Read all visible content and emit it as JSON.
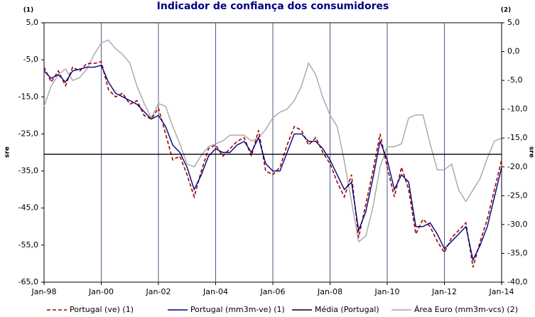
{
  "chart_data": {
    "type": "line",
    "title": "Indicador de confiança dos consumidores",
    "y_axis_note": "(1)",
    "y2_axis_note": "(2)",
    "ylabel": "sre",
    "y2label": "sre",
    "x": [
      "1998-01",
      "1998-04",
      "1998-07",
      "1998-10",
      "1999-01",
      "1999-04",
      "1999-07",
      "1999-10",
      "2000-01",
      "2000-04",
      "2000-07",
      "2000-10",
      "2001-01",
      "2001-04",
      "2001-07",
      "2001-10",
      "2002-01",
      "2002-04",
      "2002-07",
      "2002-10",
      "2003-01",
      "2003-04",
      "2003-07",
      "2003-10",
      "2004-01",
      "2004-04",
      "2004-07",
      "2004-10",
      "2005-01",
      "2005-04",
      "2005-07",
      "2005-10",
      "2006-01",
      "2006-04",
      "2006-07",
      "2006-10",
      "2007-01",
      "2007-04",
      "2007-07",
      "2007-10",
      "2008-01",
      "2008-04",
      "2008-07",
      "2008-10",
      "2009-01",
      "2009-04",
      "2009-07",
      "2009-10",
      "2010-01",
      "2010-04",
      "2010-07",
      "2010-10",
      "2011-01",
      "2011-04",
      "2011-07",
      "2011-10",
      "2012-01",
      "2012-04",
      "2012-07",
      "2012-10",
      "2013-01",
      "2013-04",
      "2013-07",
      "2013-10",
      "2014-01"
    ],
    "xlim": [
      "1998-01",
      "2014-01"
    ],
    "xticks": [
      {
        "value": "1998-01",
        "label": "Jan-98"
      },
      {
        "value": "2000-01",
        "label": "Jan-00"
      },
      {
        "value": "2002-01",
        "label": "Jan-02"
      },
      {
        "value": "2004-01",
        "label": "Jan-04"
      },
      {
        "value": "2006-01",
        "label": "Jan-06"
      },
      {
        "value": "2008-01",
        "label": "Jan-08"
      },
      {
        "value": "2010-01",
        "label": "Jan-10"
      },
      {
        "value": "2012-01",
        "label": "Jan-12"
      },
      {
        "value": "2014-01",
        "label": "Jan-14"
      }
    ],
    "ylim": [
      -65,
      5
    ],
    "yticks": [
      {
        "value": 5,
        "label": "5,0"
      },
      {
        "value": -5,
        "label": "-5,0"
      },
      {
        "value": -15,
        "label": "-15,0"
      },
      {
        "value": -25,
        "label": "-25,0"
      },
      {
        "value": -35,
        "label": "-35,0"
      },
      {
        "value": -45,
        "label": "-45,0"
      },
      {
        "value": -55,
        "label": "-55,0"
      },
      {
        "value": -65,
        "label": "-65,0"
      }
    ],
    "y2lim": [
      -40,
      5
    ],
    "y2ticks": [
      {
        "value": 5,
        "label": "5,0"
      },
      {
        "value": 0,
        "label": "0,0"
      },
      {
        "value": -5,
        "label": "-5,0"
      },
      {
        "value": -10,
        "label": "-10,0"
      },
      {
        "value": -15,
        "label": "-15,0"
      },
      {
        "value": -20,
        "label": "-20,0"
      },
      {
        "value": -25,
        "label": "-25,0"
      },
      {
        "value": -30,
        "label": "-30,0"
      },
      {
        "value": -35,
        "label": "-35,0"
      },
      {
        "value": -40,
        "label": "-40,0"
      }
    ],
    "grid": true,
    "legend": "bottom",
    "series": [
      {
        "name": "Portugal (ve) (1)",
        "color": "#a00000",
        "style": "dashed",
        "values": [
          -7,
          -11,
          -8,
          -12,
          -7,
          -8,
          -6,
          -6,
          -5.5,
          -13,
          -15,
          -14,
          -17,
          -16,
          -20,
          -21,
          -18,
          -25,
          -32,
          -31,
          -36,
          -42,
          -35,
          -29,
          -28,
          -31,
          -29,
          -27,
          -26,
          -31,
          -24,
          -35,
          -36,
          -34,
          -28,
          -23,
          -24,
          -28,
          -26,
          -30,
          -33,
          -38,
          -42,
          -36,
          -53,
          -44,
          -35,
          -25,
          -34,
          -42,
          -34,
          -40,
          -52,
          -48,
          -50,
          -54,
          -57,
          -53,
          -51,
          -49,
          -61,
          -54,
          -48,
          -40,
          -32
        ]
      },
      {
        "name": "Portugal (mm3m-ve) (1)",
        "color": "#000080",
        "style": "solid",
        "values": [
          -8,
          -10,
          -9,
          -11,
          -8,
          -7.5,
          -7,
          -7,
          -6.5,
          -11,
          -14,
          -15,
          -16,
          -17,
          -19,
          -21,
          -20,
          -23,
          -28,
          -30,
          -34,
          -40,
          -36,
          -31,
          -29,
          -30,
          -30,
          -28,
          -27,
          -30,
          -26,
          -33,
          -35,
          -35,
          -30,
          -25,
          -25,
          -27,
          -27,
          -29,
          -32,
          -36,
          -40,
          -38,
          -51,
          -46,
          -37,
          -27,
          -32,
          -40,
          -36,
          -38,
          -50,
          -50,
          -49,
          -52,
          -56,
          -54,
          -52,
          -50,
          -59,
          -55,
          -50,
          -42,
          -34
        ]
      },
      {
        "name": "Média (Portugal)",
        "color": "#000000",
        "style": "solid",
        "values": [
          -30.5,
          -30.5,
          -30.5,
          -30.5,
          -30.5,
          -30.5,
          -30.5,
          -30.5,
          -30.5,
          -30.5,
          -30.5,
          -30.5,
          -30.5,
          -30.5,
          -30.5,
          -30.5,
          -30.5,
          -30.5,
          -30.5,
          -30.5,
          -30.5,
          -30.5,
          -30.5,
          -30.5,
          -30.5,
          -30.5,
          -30.5,
          -30.5,
          -30.5,
          -30.5,
          -30.5,
          -30.5,
          -30.5,
          -30.5,
          -30.5,
          -30.5,
          -30.5,
          -30.5,
          -30.5,
          -30.5,
          -30.5,
          -30.5,
          -30.5,
          -30.5,
          -30.5,
          -30.5,
          -30.5,
          -30.5,
          -30.5,
          -30.5,
          -30.5,
          -30.5,
          -30.5,
          -30.5,
          -30.5,
          -30.5,
          -30.5,
          -30.5,
          -30.5,
          -30.5,
          -30.5,
          -30.5,
          -30.5,
          -30.5,
          -30.5
        ]
      },
      {
        "name": "Área Euro (mm3m-vcs) (2)",
        "color": "#a6a6a6",
        "style": "solid",
        "axis": "y2",
        "values": [
          -9.5,
          -6,
          -4,
          -3,
          -5,
          -4.5,
          -3,
          -0.5,
          1.5,
          2,
          0.5,
          -0.5,
          -2,
          -6,
          -9,
          -11.5,
          -9,
          -9.5,
          -13,
          -16,
          -19.5,
          -20,
          -18,
          -16.5,
          -16,
          -15.5,
          -14.5,
          -14.5,
          -14.5,
          -15.5,
          -15,
          -13.5,
          -11.5,
          -10.5,
          -10,
          -8.5,
          -6,
          -2,
          -4,
          -8,
          -11,
          -13,
          -19,
          -26,
          -33,
          -32,
          -27,
          -20,
          -16.5,
          -16.5,
          -16,
          -11.5,
          -11,
          -11,
          -16,
          -20.5,
          -20.5,
          -19.5,
          -24,
          -26,
          -24,
          -22,
          -18.5,
          -15.5,
          -15
        ]
      }
    ]
  }
}
